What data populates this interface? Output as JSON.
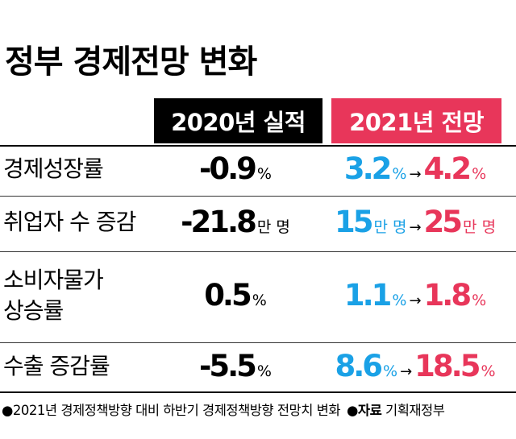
{
  "title": "정부 경제전망 변화",
  "headers": {
    "col_2020": "2020년 실적",
    "col_2021": "2021년 전망"
  },
  "colors": {
    "blue": "#1aa1e6",
    "red": "#e8365a",
    "black": "#000000"
  },
  "rows": [
    {
      "label": "경제성장률",
      "label_line2": "",
      "v2020": "-0.9",
      "u2020": "%",
      "from": "3.2",
      "from_unit": "%",
      "arrow": "→",
      "to": "4.2",
      "to_unit": "%"
    },
    {
      "label": "취업자 수 증감",
      "label_line2": "",
      "v2020": "-21.8",
      "u2020": "만 명",
      "from": "15",
      "from_unit": "만 명",
      "arrow": "→",
      "to": "25",
      "to_unit": "만 명"
    },
    {
      "label": "소비자물가",
      "label_line2": "상승률",
      "v2020": "0.5",
      "u2020": "%",
      "from": "1.1",
      "from_unit": "%",
      "arrow": "→",
      "to": "1.8",
      "to_unit": "%"
    },
    {
      "label": "수출 증감률",
      "label_line2": "",
      "v2020": "-5.5",
      "u2020": "%",
      "from": "8.6",
      "from_unit": "%",
      "arrow": "→",
      "to": "18.5",
      "to_unit": "%"
    }
  ],
  "chart_data": {
    "type": "table",
    "title": "정부 경제전망 변화",
    "columns": [
      "",
      "2020년 실적",
      "2021년 전망"
    ],
    "rows": [
      [
        "경제성장률",
        "-0.9%",
        "3.2% → 4.2%"
      ],
      [
        "취업자 수 증감",
        "-21.8만 명",
        "15만 명 → 25만 명"
      ],
      [
        "소비자물가 상승률",
        "0.5%",
        "1.1% → 1.8%"
      ],
      [
        "수출 증감률",
        "-5.5%",
        "8.6% → 18.5%"
      ]
    ]
  },
  "footer": {
    "note": "●2021년 경제정책방향 대비 하반기 경제정책방향 전망치 변화",
    "source_label": "●자료",
    "source": "기획재정부"
  }
}
